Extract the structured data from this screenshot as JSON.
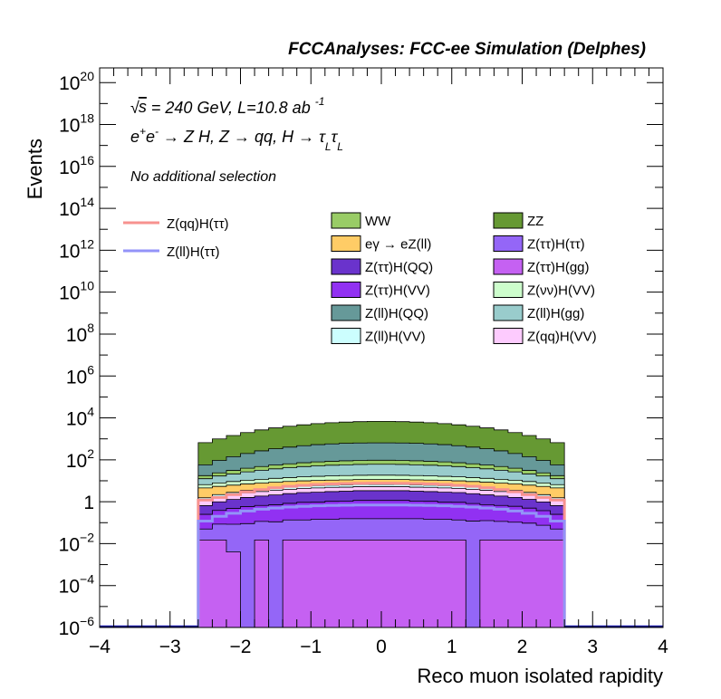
{
  "chart_data": {
    "type": "bar",
    "title": "FCCAnalyses: FCC-ee Simulation (Delphes)",
    "xlabel": "Reco muon isolated rapidity",
    "ylabel": "Events",
    "xlim": [
      -4,
      4
    ],
    "ylim_log10": [
      -6,
      20.7
    ],
    "log_y": true,
    "x_tick_labels": [
      "−4",
      "−3",
      "−2",
      "−1",
      "0",
      "1",
      "2",
      "3",
      "4"
    ],
    "y_tick_labels": [
      {
        "base": "10",
        "exp": "20"
      },
      {
        "base": "10",
        "exp": "18"
      },
      {
        "base": "10",
        "exp": "16"
      },
      {
        "base": "10",
        "exp": "14"
      },
      {
        "base": "10",
        "exp": "12"
      },
      {
        "base": "10",
        "exp": "10"
      },
      {
        "base": "10",
        "exp": "8"
      },
      {
        "base": "10",
        "exp": "6"
      },
      {
        "base": "10",
        "exp": "4"
      },
      {
        "base": "10",
        "exp": "2"
      },
      {
        "base": "1",
        "exp": ""
      },
      {
        "base": "10",
        "exp": "−2"
      },
      {
        "base": "10",
        "exp": "−4"
      },
      {
        "base": "10",
        "exp": "−6"
      }
    ],
    "annotations": {
      "energy_line": "√s = 240 GeV, L=10.8 ab⁻¹",
      "process_line": "e⁺e⁻ → Z H, Z → qq, H → τLτL",
      "selection_line": "No additional selection"
    },
    "bin_edges": [
      -2.6,
      -2.4,
      -2.2,
      -2.0,
      -1.8,
      -1.6,
      -1.4,
      -1.2,
      -1.0,
      -0.8,
      -0.6,
      -0.4,
      -0.2,
      0.0,
      0.2,
      0.4,
      0.6,
      0.8,
      1.0,
      1.2,
      1.4,
      1.6,
      1.8,
      2.0,
      2.2,
      2.4,
      2.6
    ],
    "stack_order_bottom_to_top": [
      "Z(ττ)H(gg)",
      "Z(ττ)H(ττ)",
      "Z(ττ)H(VV)",
      "Z(ττ)H(QQ)",
      "Z(qq)H(VV)",
      "Z(ll)H(VV)",
      "eγ → eZ(ll)",
      "Z(νν)H(VV)",
      "Z(ll)H(gg)",
      "WW",
      "Z(ll)H(QQ)",
      "ZZ"
    ],
    "series": [
      {
        "name": "Z(ττ)H(gg)",
        "color": "#c561f2",
        "values": [
          0.015,
          0.015,
          0.004,
          1e-08,
          0.015,
          1e-08,
          0.015,
          0.015,
          0.015,
          0.015,
          0.015,
          0.015,
          0.015,
          0.015,
          0.015,
          0.015,
          0.015,
          0.015,
          0.015,
          1e-08,
          0.015,
          0.015,
          0.015,
          0.015,
          0.015,
          0.015
        ]
      },
      {
        "name": "Z(ττ)H(ττ)",
        "color": "#9466f7",
        "values": [
          0.035,
          0.07,
          0.08,
          0.09,
          0.1,
          0.11,
          0.12,
          0.12,
          0.13,
          0.13,
          0.14,
          0.14,
          0.14,
          0.14,
          0.14,
          0.14,
          0.13,
          0.13,
          0.12,
          0.12,
          0.11,
          0.1,
          0.09,
          0.08,
          0.06,
          0.035
        ]
      },
      {
        "name": "Z(ττ)H(VV)",
        "color": "#9131f2",
        "values": [
          0.2,
          0.3,
          0.4,
          0.5,
          0.55,
          0.6,
          0.7,
          0.8,
          0.8,
          0.9,
          0.9,
          1.0,
          1.0,
          1.0,
          1.0,
          0.9,
          0.9,
          0.8,
          0.8,
          0.7,
          0.6,
          0.55,
          0.5,
          0.4,
          0.3,
          0.2
        ]
      },
      {
        "name": "Z(ττ)H(QQ)",
        "color": "#6a33cc",
        "values": [
          0.4,
          0.6,
          0.8,
          1.0,
          1.2,
          1.4,
          1.6,
          1.8,
          1.9,
          2.0,
          2.1,
          2.2,
          2.2,
          2.2,
          2.2,
          2.1,
          2.0,
          1.9,
          1.8,
          1.6,
          1.4,
          1.2,
          1.0,
          0.8,
          0.6,
          0.4
        ]
      },
      {
        "name": "Z(qq)H(VV)",
        "color": "#fdcbfe",
        "values": [
          0.5,
          0.7,
          0.9,
          1.1,
          1.2,
          1.4,
          1.5,
          1.6,
          1.7,
          1.8,
          1.8,
          1.9,
          1.9,
          1.9,
          1.9,
          1.8,
          1.8,
          1.7,
          1.6,
          1.5,
          1.4,
          1.2,
          1.1,
          0.9,
          0.7,
          0.5
        ]
      },
      {
        "name": "Z(ll)H(VV)",
        "color": "#ccfefe",
        "values": [
          0.4,
          0.5,
          0.6,
          0.8,
          0.9,
          1.0,
          1.1,
          1.2,
          1.3,
          1.3,
          1.4,
          1.4,
          1.4,
          1.4,
          1.4,
          1.4,
          1.3,
          1.3,
          1.2,
          1.1,
          1.0,
          0.9,
          0.8,
          0.6,
          0.5,
          0.4
        ]
      },
      {
        "name": "eγ → eZ(ll)",
        "color": "#ffcc66",
        "values": [
          3.0,
          3.2,
          3.4,
          3.6,
          3.8,
          4.0,
          4.2,
          4.4,
          4.5,
          4.6,
          4.7,
          4.8,
          4.8,
          4.8,
          4.8,
          4.7,
          4.6,
          4.5,
          4.4,
          4.2,
          4.0,
          3.8,
          3.6,
          3.4,
          3.2,
          3.0
        ]
      },
      {
        "name": "Z(νν)H(VV)",
        "color": "#cdfdcc",
        "values": [
          2.0,
          2.5,
          3.0,
          3.5,
          4.0,
          4.5,
          5.0,
          5.5,
          6.0,
          6.3,
          6.6,
          6.8,
          7.0,
          7.0,
          6.8,
          6.6,
          6.3,
          6.0,
          5.5,
          5.0,
          4.5,
          4.0,
          3.5,
          3.0,
          2.5,
          2.0
        ]
      },
      {
        "name": "Z(ll)H(gg)",
        "color": "#99cccc",
        "values": [
          6,
          9,
          12,
          16,
          20,
          24,
          28,
          32,
          35,
          38,
          40,
          42,
          43,
          43,
          42,
          40,
          38,
          35,
          32,
          28,
          24,
          20,
          16,
          12,
          9,
          6
        ]
      },
      {
        "name": "WW",
        "color": "#99cc66",
        "values": [
          5,
          7,
          10,
          13,
          16,
          19,
          22,
          25,
          28,
          30,
          32,
          33,
          34,
          34,
          33,
          32,
          30,
          28,
          25,
          22,
          19,
          16,
          13,
          10,
          7,
          5
        ]
      },
      {
        "name": "Z(ll)H(QQ)",
        "color": "#669999",
        "values": [
          40,
          70,
          110,
          160,
          220,
          280,
          340,
          400,
          450,
          490,
          520,
          540,
          550,
          550,
          540,
          520,
          490,
          450,
          400,
          340,
          280,
          220,
          160,
          110,
          70,
          40
        ]
      },
      {
        "name": "ZZ",
        "color": "#669933",
        "values": [
          600,
          900,
          1300,
          1800,
          2400,
          3000,
          3600,
          4200,
          4800,
          5300,
          5700,
          6000,
          6200,
          6200,
          6000,
          5700,
          5300,
          4800,
          4200,
          3600,
          3000,
          2400,
          1800,
          1300,
          900,
          600
        ]
      }
    ],
    "signal_lines": [
      {
        "name": "Z(qq)H(ττ)",
        "color": "#f7928f",
        "values": [
          1.2,
          1.6,
          2.2,
          3.0,
          3.8,
          4.6,
          5.4,
          6.0,
          6.6,
          7.0,
          7.3,
          7.5,
          7.6,
          7.6,
          7.5,
          7.3,
          7.0,
          6.6,
          6.0,
          5.4,
          4.6,
          3.8,
          3.0,
          2.2,
          1.6,
          1.2
        ]
      },
      {
        "name": "Z(ll)H(ττ)",
        "color": "#9393f8",
        "values": [
          0.12,
          0.2,
          0.28,
          0.36,
          0.44,
          0.5,
          0.56,
          0.6,
          0.64,
          0.66,
          0.68,
          0.7,
          0.7,
          0.7,
          0.7,
          0.68,
          0.66,
          0.64,
          0.6,
          0.56,
          0.5,
          0.44,
          0.36,
          0.28,
          0.2,
          0.12
        ]
      }
    ],
    "legend": {
      "placement": "top",
      "columns": [
        [
          "WW",
          "eγ → eZ(ll)",
          "Z(ττ)H(QQ)",
          "Z(ττ)H(VV)",
          "Z(ll)H(QQ)",
          "Z(ll)H(VV)"
        ],
        [
          "ZZ",
          "Z(ττ)H(ττ)",
          "Z(ττ)H(gg)",
          "Z(νν)H(VV)",
          "Z(ll)H(gg)",
          "Z(qq)H(VV)"
        ]
      ],
      "lines": [
        "Z(qq)H(ττ)",
        "Z(ll)H(ττ)"
      ]
    }
  }
}
